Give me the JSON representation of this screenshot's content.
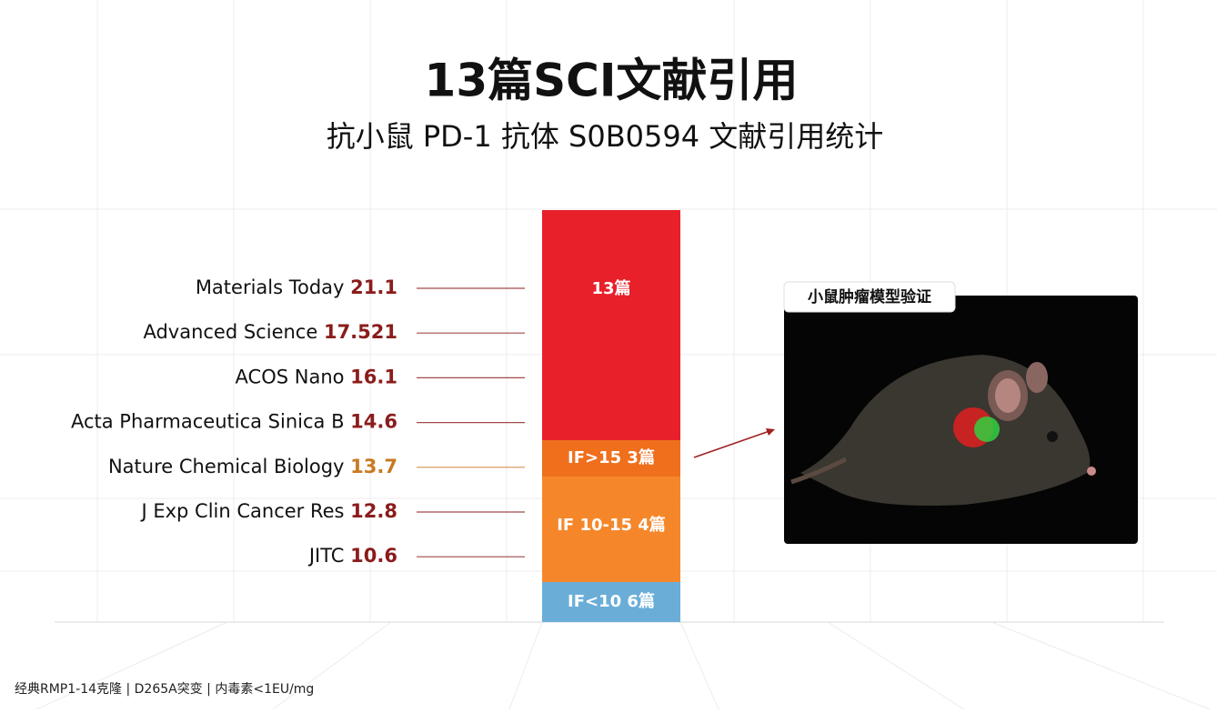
{
  "header": {
    "title": "13篇SCI文献引用",
    "subtitle": "抗小鼠 PD-1 抗体 S0B0594 文献引用统计"
  },
  "journals": [
    {
      "name": "Materials Today",
      "impact_factor": 21.1,
      "color": "#8b1c1c"
    },
    {
      "name": "Advanced Science",
      "impact_factor": 17.521,
      "color": "#8b1c1c"
    },
    {
      "name": "ACOS Nano",
      "impact_factor": 16.1,
      "color": "#8b1c1c"
    },
    {
      "name": "Acta Pharmaceutica Sinica B",
      "impact_factor": 14.6,
      "color": "#8b1c1c"
    },
    {
      "name": "Nature Chemical Biology",
      "impact_factor": 13.7,
      "color": "#c87a22"
    },
    {
      "name": "J Exp Clin Cancer Res",
      "impact_factor": 12.8,
      "color": "#8b1c1c"
    },
    {
      "name": "JITC",
      "impact_factor": 10.6,
      "color": "#8b1c1c"
    }
  ],
  "bar": {
    "segments": [
      {
        "label": "13篇",
        "color": "#e8202a"
      },
      {
        "label": "IF>15 3篇",
        "color": "#ef6f1d"
      },
      {
        "label": "IF 10-15 4篇",
        "color": "#f5872a"
      },
      {
        "label": "IF<10 6篇",
        "color": "#6aaed8"
      }
    ]
  },
  "image": {
    "caption": "小鼠肿瘤模型验证"
  },
  "footer": "经典RMP1-14克隆 | D265A突变 | 内毒素<1EU/mg"
}
